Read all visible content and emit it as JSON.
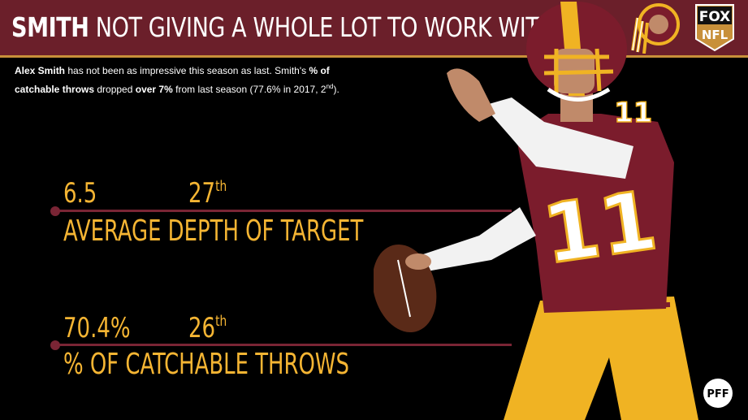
{
  "header": {
    "title_bold": "SMITH",
    "title_rest": " NOT GIVING A WHOLE LOT TO WORK WITH"
  },
  "subtitle": {
    "part1_bold": "Alex Smith",
    "part2": " has not been as impressive this season as last. Smith's ",
    "part3_bold": "% of",
    "part4": " ",
    "part5_bold": "catchable throws",
    "part6": " dropped ",
    "part7_bold": "over 7%",
    "part8": " from last season (77.6% in 2017, 2",
    "part9_sup": "nd",
    "part10": ")."
  },
  "stats": [
    {
      "value": "6.5",
      "rank_num": "27",
      "rank_suffix": "th",
      "label": "AVERAGE DEPTH OF TARGET"
    },
    {
      "value": "70.4%",
      "rank_num": "26",
      "rank_suffix": "th",
      "label": "% OF CATCHABLE THROWS"
    }
  ],
  "logos": {
    "fox_top": "FOX",
    "fox_bottom": "NFL",
    "pff": "PFF"
  },
  "colors": {
    "header_bg": "#6b1f2a",
    "accent_gold": "#f5b533",
    "rule": "#7a2535",
    "jersey_burgundy": "#7b1c2c",
    "pants_gold": "#f0b323"
  }
}
